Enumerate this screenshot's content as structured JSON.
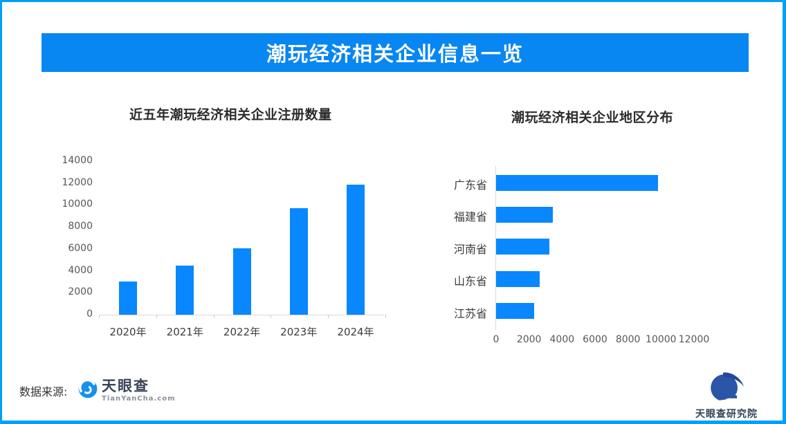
{
  "frame": {
    "border_color": "#00A0F8",
    "background": "#FFFFFF"
  },
  "banner": {
    "title": "潮玩经济相关企业信息一览",
    "bg_color": "#0886F2",
    "text_color": "#FFFFFF"
  },
  "chart_data": [
    {
      "type": "bar",
      "orientation": "vertical",
      "title": "近五年潮玩经济相关企业注册数量",
      "categories": [
        "2020年",
        "2021年",
        "2022年",
        "2023年",
        "2024年"
      ],
      "values": [
        3000,
        4450,
        6050,
        9700,
        11850
      ],
      "ylabel": "",
      "xlabel": "",
      "ylim": [
        0,
        14000
      ],
      "yticks": [
        0,
        2000,
        4000,
        6000,
        8000,
        10000,
        12000,
        14000
      ],
      "bar_color": "#0887FE",
      "grid": false,
      "legend": "none"
    },
    {
      "type": "bar",
      "orientation": "horizontal",
      "title": "潮玩经济相关企业地区分布",
      "categories": [
        "广东省",
        "福建省",
        "河南省",
        "山东省",
        "江苏省"
      ],
      "values": [
        9800,
        3450,
        3250,
        2650,
        2300
      ],
      "ylabel": "",
      "xlabel": "",
      "xlim": [
        0,
        12000
      ],
      "xticks": [
        0,
        2000,
        4000,
        6000,
        8000,
        10000,
        12000
      ],
      "bar_color": "#0887FE",
      "grid": false,
      "legend": "none"
    }
  ],
  "footer": {
    "source_label": "数据来源:",
    "tianyancha": {
      "name": "天眼查",
      "domain": "TianYanCha.com",
      "icon_color": "#1590EE"
    },
    "research": {
      "name": "天眼查研究院",
      "icon_color": "#2B55A7"
    }
  }
}
